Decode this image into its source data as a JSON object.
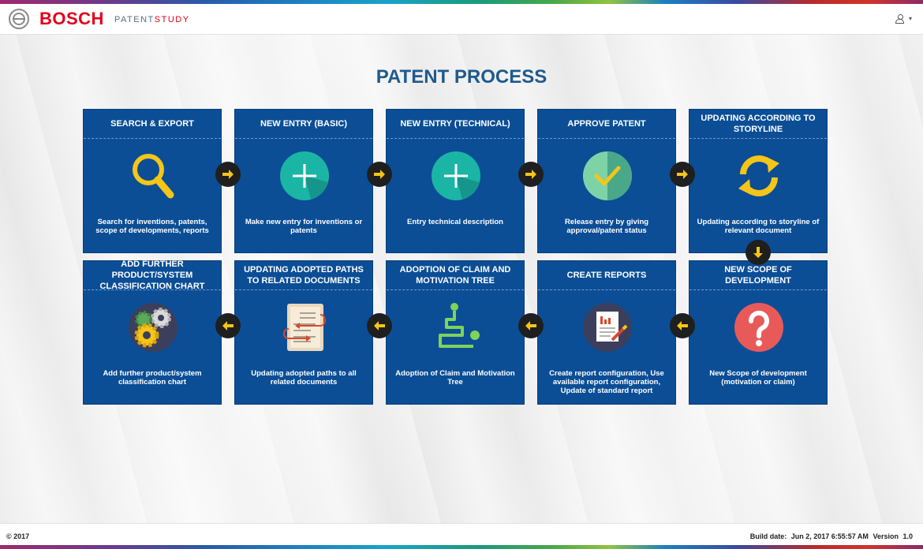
{
  "header": {
    "brand": "BOSCH",
    "app_name_part1": "PATENT",
    "app_name_part2": "STUDY"
  },
  "main": {
    "title": "PATENT PROCESS",
    "cards": [
      {
        "title": "SEARCH & EXPORT",
        "desc": "Search for inventions, patents, scope of developments, reports",
        "icon": "magnifier-icon"
      },
      {
        "title": "NEW ENTRY (BASIC)",
        "desc": "Make new entry for inventions or patents",
        "icon": "plus-icon"
      },
      {
        "title": "NEW ENTRY (TECHNICAL)",
        "desc": "Entry technical description",
        "icon": "plus-icon"
      },
      {
        "title": "APPROVE PATENT",
        "desc": "Release entry by giving approval/patent status",
        "icon": "checkmark-icon"
      },
      {
        "title": "UPDATING ACCORDING TO STORYLINE",
        "desc": "Updating according to storyline of relevant document",
        "icon": "refresh-icon"
      },
      {
        "title": "ADD FURTHER PRODUCT/SYSTEM CLASSIFICATION CHART",
        "desc": "Add further product/system classification chart",
        "icon": "gears-icon"
      },
      {
        "title": "UPDATING ADOPTED PATHS TO RELATED DOCUMENTS",
        "desc": "Updating adopted paths to all related documents",
        "icon": "document-arrows-icon"
      },
      {
        "title": "ADOPTION OF CLAIM AND MOTIVATION TREE",
        "desc": "Adoption of Claim and Motivation Tree",
        "icon": "path-tree-icon"
      },
      {
        "title": "CREATE REPORTS",
        "desc": "Create report configuration, Use available report configuration, Update of standard report",
        "icon": "report-icon"
      },
      {
        "title": "NEW SCOPE OF DEVELOPMENT",
        "desc": "New Scope of development (motivation or claim)",
        "icon": "question-icon"
      }
    ]
  },
  "footer": {
    "copyright": "© 2017",
    "build_label": "Build date:",
    "build_date": "Jun 2, 2017 6:55:57 AM",
    "version_label": "Version",
    "version": "1.0"
  },
  "colors": {
    "card_bg": "#0b4e96",
    "title": "#1e5a8c",
    "brand": "#e2001a",
    "arrow_fill": "#f5c518"
  }
}
